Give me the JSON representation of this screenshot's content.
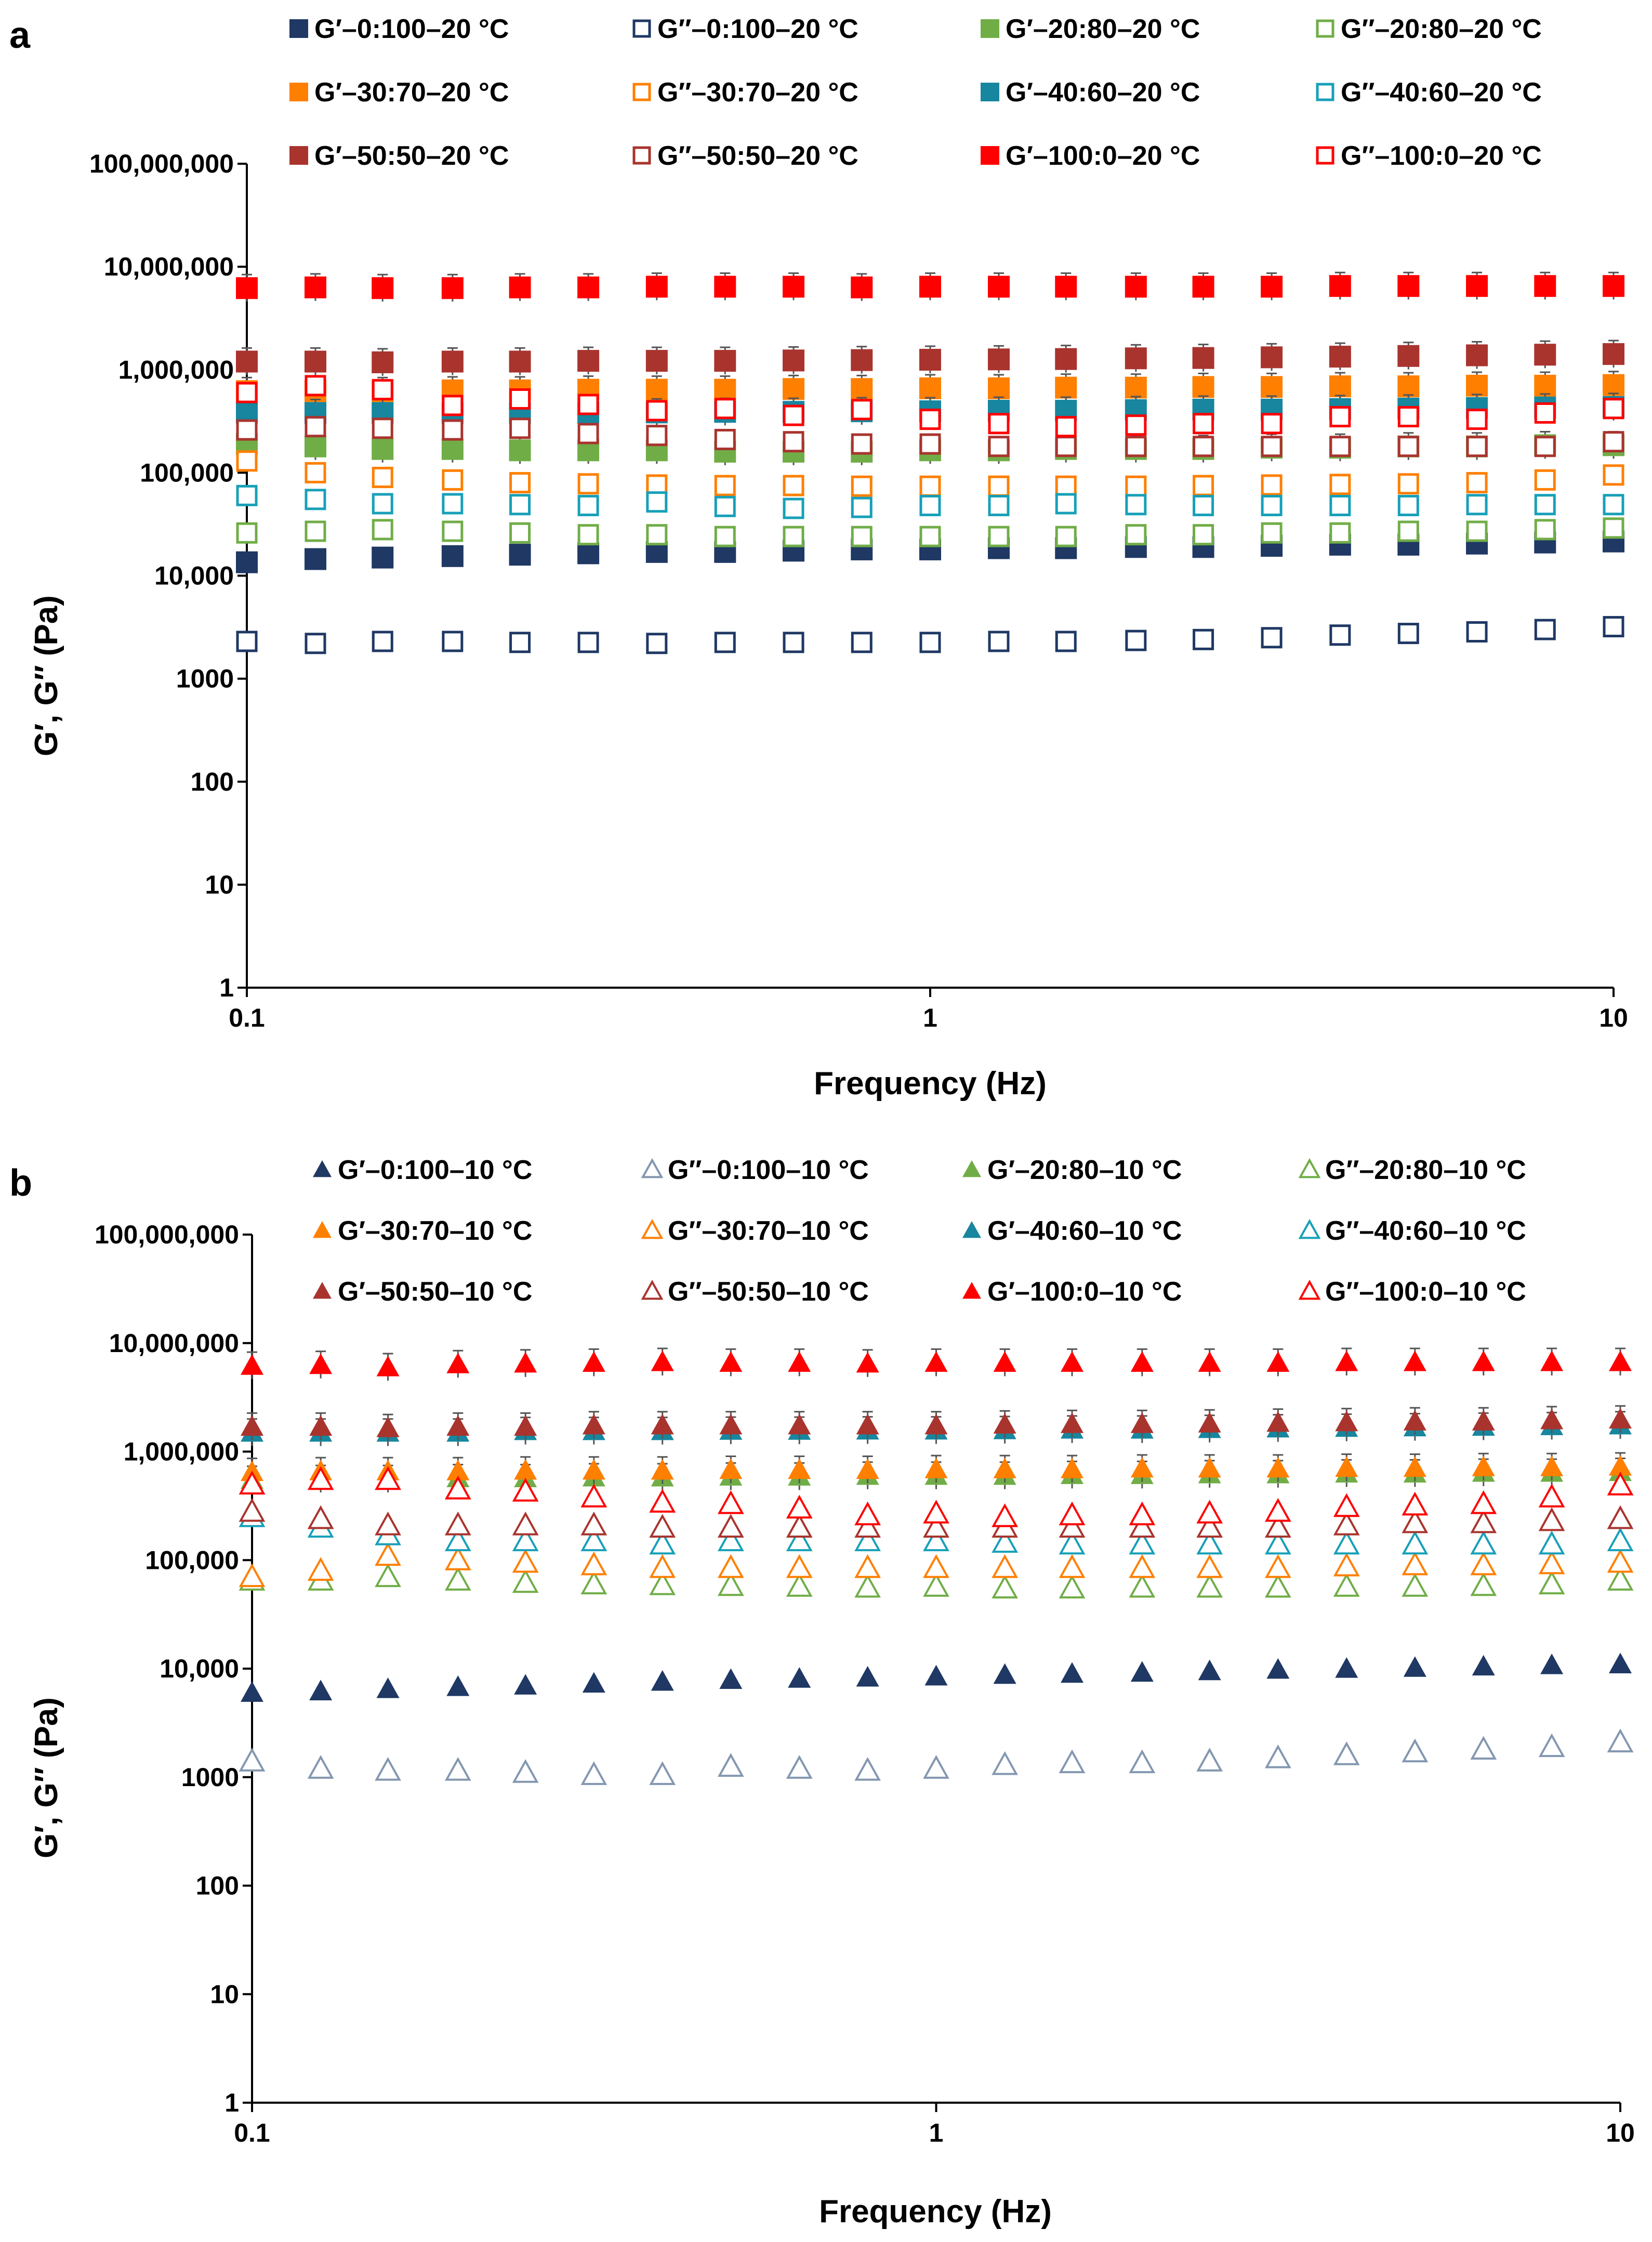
{
  "panels": [
    {
      "label": "a",
      "marker": "square",
      "xlabel": "Frequency (Hz)",
      "ylabel": "G′, G″ (Pa)",
      "xticks": [
        "0.1",
        "1",
        "10"
      ],
      "yticks": [
        "1",
        "10",
        "100",
        "1000",
        "10,000",
        "100,000",
        "1,000,000",
        "10,000,000",
        "100,000,000"
      ],
      "legend": [
        "G′–0:100–20 °C",
        "G″–0:100–20 °C",
        "G′–20:80–20 °C",
        "G″–20:80–20 °C",
        "G′–30:70–20 °C",
        "G″–30:70–20 °C",
        "G′–40:60–20 °C",
        "G″–40:60–20 °C",
        "G′–50:50–20 °C",
        "G″–50:50–20 °C",
        "G′–100:0–20 °C",
        "G″–100:0–20 °C"
      ]
    },
    {
      "label": "b",
      "marker": "triangle",
      "xlabel": "Frequency (Hz)",
      "ylabel": "G′, G″ (Pa)",
      "xticks": [
        "0.1",
        "1",
        "10"
      ],
      "yticks": [
        "1",
        "10",
        "100",
        "1000",
        "10,000",
        "100,000",
        "1,000,000",
        "10,000,000",
        "100,000,000"
      ],
      "legend": [
        "G′–0:100–10 °C",
        "G″–0:100–10 °C",
        "G′–20:80–10 °C",
        "G″–20:80–10 °C",
        "G′–30:70–10 °C",
        "G″–30:70–10 °C",
        "G′–40:60–10 °C",
        "G″–40:60–10 °C",
        "G′–50:50–10 °C",
        "G″–50:50–10 °C",
        "G′–100:0–10 °C",
        "G″–100:0–10 °C"
      ]
    }
  ],
  "chart_data": [
    {
      "type": "scatter",
      "title": "a",
      "xlabel": "Frequency (Hz)",
      "ylabel": "G′, G″ (Pa)",
      "xscale": "log",
      "yscale": "log",
      "xlim": [
        0.1,
        10
      ],
      "ylim": [
        1,
        100000000
      ],
      "x": [
        0.1,
        0.126,
        0.158,
        0.2,
        0.251,
        0.316,
        0.398,
        0.501,
        0.631,
        0.794,
        1,
        1.26,
        1.58,
        2,
        2.51,
        3.16,
        3.98,
        5.01,
        6.31,
        7.94,
        10
      ],
      "series": [
        {
          "name": "G′–0:100–20 °C",
          "color": "#1f3864",
          "filled": true,
          "values": [
            13500,
            14500,
            15000,
            15500,
            16000,
            16500,
            17000,
            17000,
            17500,
            18000,
            18000,
            18500,
            18500,
            19000,
            19000,
            19500,
            20000,
            20000,
            20500,
            21000,
            21500
          ]
        },
        {
          "name": "G″–0:100–20 °C",
          "color": "#1f3864",
          "filled": false,
          "values": [
            2300,
            2200,
            2300,
            2300,
            2250,
            2250,
            2200,
            2250,
            2250,
            2250,
            2250,
            2300,
            2300,
            2350,
            2400,
            2500,
            2650,
            2750,
            2850,
            3000,
            3200
          ]
        },
        {
          "name": "G′–20:80–20 °C",
          "color": "#70ad47",
          "filled": true,
          "values": [
            190000,
            180000,
            170000,
            170000,
            165000,
            165000,
            165000,
            160000,
            160000,
            160000,
            165000,
            165000,
            170000,
            170000,
            170000,
            175000,
            175000,
            180000,
            180000,
            185000,
            185000
          ]
        },
        {
          "name": "G″–20:80–20 °C",
          "color": "#70ad47",
          "filled": false,
          "values": [
            26000,
            27000,
            28000,
            27000,
            26000,
            25000,
            25000,
            24000,
            24000,
            24000,
            24000,
            24000,
            24000,
            25000,
            25000,
            26000,
            26000,
            27000,
            27000,
            28000,
            29000
          ]
        },
        {
          "name": "G′–30:70–20 °C",
          "color": "#ff7f00",
          "filled": true,
          "values": [
            620000,
            620000,
            620000,
            630000,
            630000,
            640000,
            640000,
            640000,
            650000,
            650000,
            660000,
            660000,
            670000,
            670000,
            680000,
            680000,
            690000,
            690000,
            700000,
            700000,
            710000
          ]
        },
        {
          "name": "G″–30:70–20 °C",
          "color": "#ff7f00",
          "filled": false,
          "values": [
            130000,
            100000,
            90000,
            85000,
            80000,
            78000,
            76000,
            75000,
            75000,
            74000,
            74000,
            74000,
            74000,
            74000,
            75000,
            76000,
            77000,
            78000,
            80000,
            85000,
            95000
          ]
        },
        {
          "name": "G′–40:60–20 °C",
          "color": "#17869e",
          "filled": true,
          "values": [
            380000,
            380000,
            380000,
            380000,
            380000,
            385000,
            385000,
            390000,
            390000,
            395000,
            395000,
            400000,
            400000,
            405000,
            410000,
            410000,
            415000,
            420000,
            425000,
            430000,
            435000
          ]
        },
        {
          "name": "G″–40:60–20 °C",
          "color": "#17a0b8",
          "filled": false,
          "values": [
            60000,
            55000,
            50000,
            50000,
            49000,
            48000,
            52000,
            47000,
            45000,
            46000,
            48000,
            48000,
            50000,
            49000,
            48000,
            48000,
            48000,
            48000,
            49000,
            49000,
            49000
          ]
        },
        {
          "name": "G′–50:50–20 °C",
          "color": "#a9342e",
          "filled": true,
          "values": [
            1200000,
            1200000,
            1180000,
            1200000,
            1200000,
            1220000,
            1220000,
            1220000,
            1230000,
            1240000,
            1250000,
            1260000,
            1270000,
            1290000,
            1300000,
            1320000,
            1340000,
            1360000,
            1380000,
            1400000,
            1420000
          ]
        },
        {
          "name": "G″–50:50–20 °C",
          "color": "#a9342e",
          "filled": false,
          "values": [
            260000,
            280000,
            270000,
            260000,
            270000,
            240000,
            230000,
            210000,
            200000,
            190000,
            190000,
            180000,
            180000,
            180000,
            180000,
            180000,
            180000,
            180000,
            180000,
            180000,
            200000
          ]
        },
        {
          "name": "G′–100:0–20 °C",
          "color": "#ff0000",
          "filled": true,
          "values": [
            6200000,
            6300000,
            6200000,
            6200000,
            6300000,
            6300000,
            6400000,
            6400000,
            6400000,
            6300000,
            6400000,
            6400000,
            6400000,
            6400000,
            6400000,
            6400000,
            6500000,
            6500000,
            6500000,
            6500000,
            6500000
          ]
        },
        {
          "name": "G″–100:0–20 °C",
          "color": "#ff0000",
          "filled": false,
          "values": [
            600000,
            700000,
            640000,
            450000,
            520000,
            460000,
            400000,
            420000,
            360000,
            410000,
            330000,
            300000,
            280000,
            290000,
            300000,
            300000,
            350000,
            350000,
            330000,
            380000,
            420000
          ]
        }
      ]
    },
    {
      "type": "scatter",
      "title": "b",
      "xlabel": "Frequency (Hz)",
      "ylabel": "G′, G″ (Pa)",
      "xscale": "log",
      "yscale": "log",
      "xlim": [
        0.1,
        10
      ],
      "ylim": [
        1,
        100000000
      ],
      "x": [
        0.1,
        0.126,
        0.158,
        0.2,
        0.251,
        0.316,
        0.398,
        0.501,
        0.631,
        0.794,
        1,
        1.26,
        1.58,
        2,
        2.51,
        3.16,
        3.98,
        5.01,
        6.31,
        7.94,
        10
      ],
      "series": [
        {
          "name": "G′–0:100–10 °C",
          "color": "#1f3864",
          "filled": true,
          "values": [
            6000,
            6200,
            6500,
            6800,
            7000,
            7300,
            7600,
            7900,
            8100,
            8300,
            8500,
            8800,
            9000,
            9200,
            9500,
            9800,
            10000,
            10200,
            10500,
            10800,
            11000
          ]
        },
        {
          "name": "G″–0:100–10 °C",
          "color": "#8497b0",
          "filled": false,
          "values": [
            1400,
            1200,
            1150,
            1150,
            1100,
            1050,
            1050,
            1250,
            1200,
            1150,
            1200,
            1300,
            1350,
            1350,
            1400,
            1500,
            1600,
            1700,
            1800,
            1900,
            2100
          ]
        },
        {
          "name": "G′–20:80–10 °C",
          "color": "#70ad47",
          "filled": true,
          "values": [
            550000,
            560000,
            560000,
            570000,
            570000,
            580000,
            580000,
            590000,
            590000,
            600000,
            600000,
            600000,
            610000,
            610000,
            620000,
            620000,
            630000,
            630000,
            640000,
            640000,
            650000
          ]
        },
        {
          "name": "G″–20:80–10 °C",
          "color": "#70ad47",
          "filled": false,
          "values": [
            65000,
            65000,
            70000,
            65000,
            62000,
            60000,
            59000,
            58000,
            57000,
            56000,
            57000,
            55000,
            55000,
            56000,
            56000,
            56000,
            57000,
            57000,
            58000,
            60000,
            65000
          ]
        },
        {
          "name": "G′–30:70–10 °C",
          "color": "#ff7f00",
          "filled": true,
          "values": [
            650000,
            660000,
            660000,
            660000,
            670000,
            670000,
            670000,
            680000,
            680000,
            680000,
            690000,
            690000,
            690000,
            700000,
            700000,
            700000,
            710000,
            710000,
            720000,
            720000,
            730000
          ]
        },
        {
          "name": "G″–30:70–10 °C",
          "color": "#ff7f00",
          "filled": false,
          "values": [
            70000,
            80000,
            110000,
            100000,
            95000,
            90000,
            85000,
            85000,
            85000,
            85000,
            85000,
            85000,
            85000,
            85000,
            85000,
            85000,
            88000,
            90000,
            90000,
            92000,
            95000
          ]
        },
        {
          "name": "G′–40:60–10 °C",
          "color": "#17869e",
          "filled": true,
          "values": [
            1500000,
            1500000,
            1500000,
            1500000,
            1550000,
            1550000,
            1550000,
            1560000,
            1560000,
            1570000,
            1570000,
            1580000,
            1600000,
            1600000,
            1620000,
            1640000,
            1660000,
            1680000,
            1700000,
            1720000,
            1750000
          ]
        },
        {
          "name": "G″–40:60–10 °C",
          "color": "#17a0b8",
          "filled": false,
          "values": [
            250000,
            200000,
            170000,
            150000,
            150000,
            150000,
            140000,
            150000,
            150000,
            150000,
            150000,
            145000,
            140000,
            140000,
            140000,
            140000,
            140000,
            140000,
            140000,
            140000,
            150000
          ]
        },
        {
          "name": "G′–50:50–10 °C",
          "color": "#a9342e",
          "filled": true,
          "values": [
            1700000,
            1700000,
            1650000,
            1700000,
            1700000,
            1750000,
            1750000,
            1750000,
            1750000,
            1750000,
            1750000,
            1780000,
            1800000,
            1800000,
            1820000,
            1850000,
            1870000,
            1900000,
            1900000,
            1950000,
            1980000
          ]
        },
        {
          "name": "G″–50:50–10 °C",
          "color": "#a9342e",
          "filled": false,
          "values": [
            280000,
            240000,
            210000,
            210000,
            210000,
            210000,
            200000,
            200000,
            200000,
            200000,
            200000,
            200000,
            200000,
            200000,
            200000,
            200000,
            210000,
            220000,
            220000,
            230000,
            240000
          ]
        },
        {
          "name": "G′–100:0–10 °C",
          "color": "#ff0000",
          "filled": true,
          "values": [
            6200000,
            6300000,
            6000000,
            6400000,
            6500000,
            6600000,
            6700000,
            6600000,
            6600000,
            6500000,
            6600000,
            6600000,
            6600000,
            6600000,
            6600000,
            6600000,
            6700000,
            6700000,
            6700000,
            6700000,
            6700000
          ]
        },
        {
          "name": "G″–100:0–10 °C",
          "color": "#ff0000",
          "filled": false,
          "values": [
            500000,
            550000,
            550000,
            450000,
            430000,
            380000,
            340000,
            330000,
            300000,
            260000,
            270000,
            250000,
            260000,
            260000,
            270000,
            280000,
            310000,
            320000,
            330000,
            380000,
            490000
          ]
        }
      ]
    }
  ]
}
